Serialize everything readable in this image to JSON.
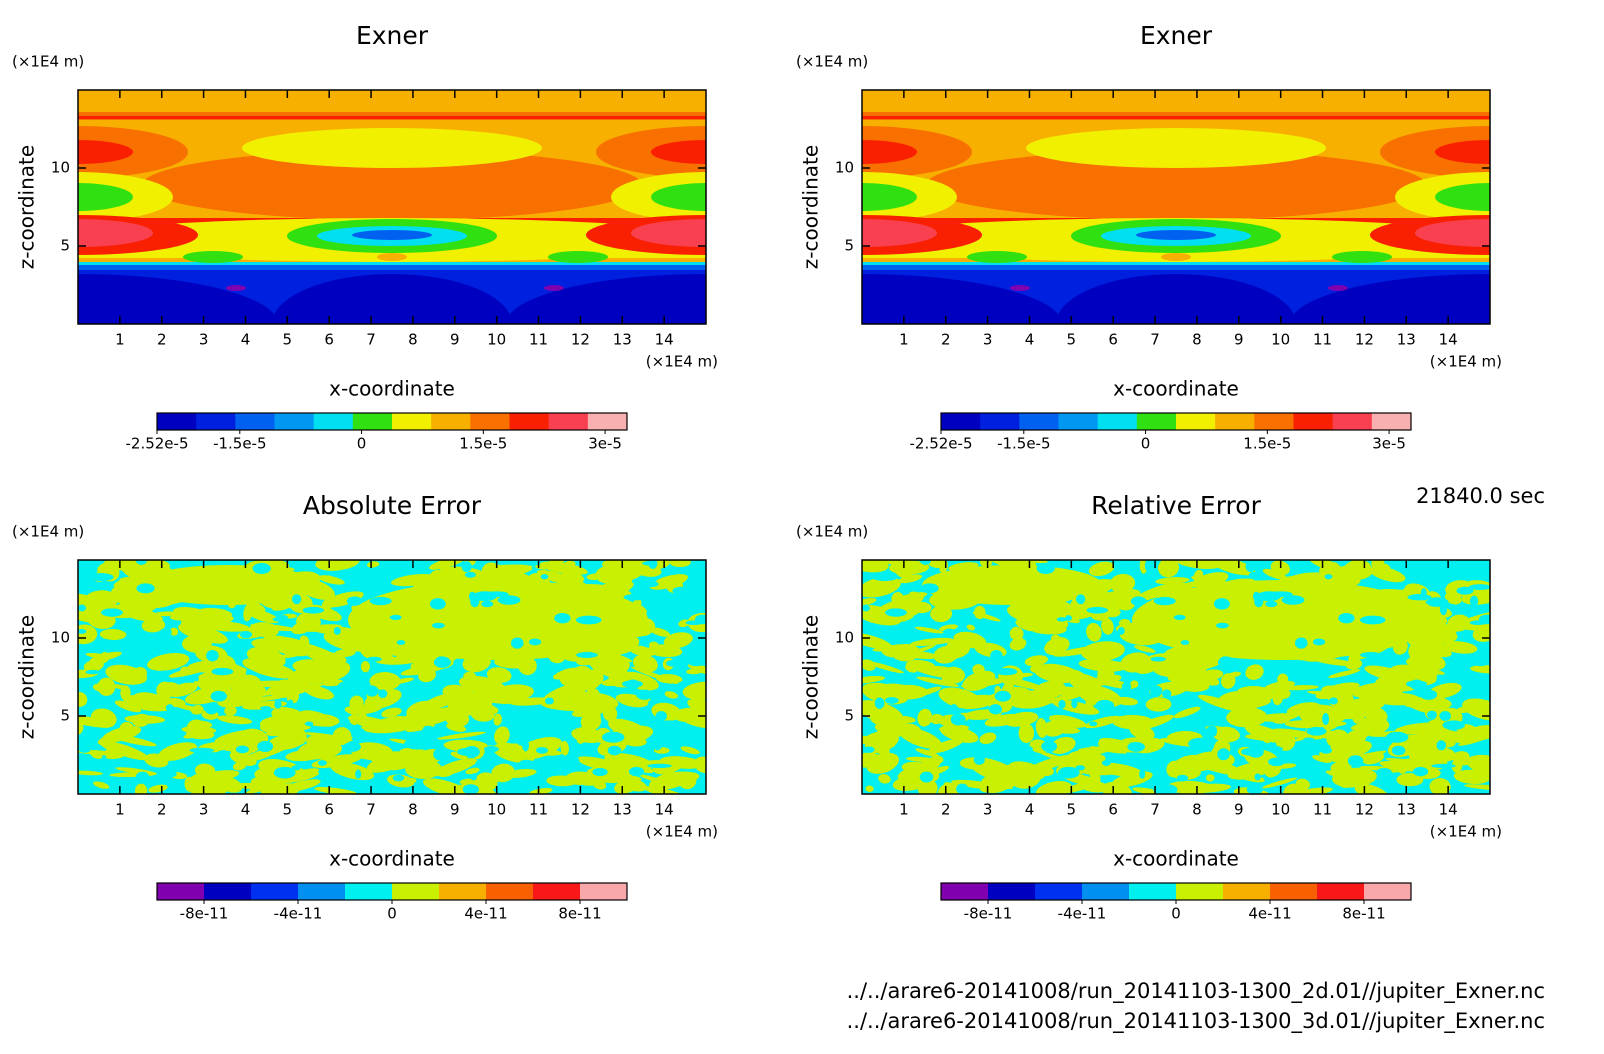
{
  "chart_data": [
    {
      "type": "contour",
      "title": "Exner",
      "xlabel": "x-coordinate",
      "ylabel": "z-coordinate",
      "xunit": "(×1E4 m)",
      "yunit": "(×1E4 m)",
      "xlim": [
        0,
        15
      ],
      "ylim": [
        0,
        15
      ],
      "xticks": [
        1,
        2,
        3,
        4,
        5,
        6,
        7,
        8,
        9,
        10,
        11,
        12,
        13,
        14
      ],
      "yticks": [
        5,
        10
      ],
      "colorbar": {
        "lim": [
          -2.52e-05,
          3.27e-05
        ],
        "colors": [
          "#0000c0",
          "#0020e0",
          "#0060f0",
          "#0098f0",
          "#00e0f0",
          "#30e010",
          "#f0f000",
          "#f8b000",
          "#f87000",
          "#f82000",
          "#f84050",
          "#f8b0b0"
        ],
        "ticks": [
          {
            "value": -2.52e-05,
            "label": "-2.52e-5"
          },
          {
            "value": -1.5e-05,
            "label": "-1.5e-5"
          },
          0,
          {
            "value": 1.5e-05,
            "label": "1.5e-5"
          },
          {
            "value": 3e-05,
            "label": "3e-5"
          }
        ]
      }
    },
    {
      "type": "contour",
      "title": "Exner",
      "xlabel": "x-coordinate",
      "ylabel": "z-coordinate",
      "xunit": "(×1E4 m)",
      "yunit": "(×1E4 m)",
      "xlim": [
        0,
        15
      ],
      "ylim": [
        0,
        15
      ],
      "xticks": [
        1,
        2,
        3,
        4,
        5,
        6,
        7,
        8,
        9,
        10,
        11,
        12,
        13,
        14
      ],
      "yticks": [
        5,
        10
      ],
      "colorbar": {
        "lim": [
          -2.52e-05,
          3.27e-05
        ],
        "colors": [
          "#0000c0",
          "#0020e0",
          "#0060f0",
          "#0098f0",
          "#00e0f0",
          "#30e010",
          "#f0f000",
          "#f8b000",
          "#f87000",
          "#f82000",
          "#f84050",
          "#f8b0b0"
        ],
        "ticks": [
          {
            "value": -2.52e-05,
            "label": "-2.52e-5"
          },
          {
            "value": -1.5e-05,
            "label": "-1.5e-5"
          },
          0,
          {
            "value": 1.5e-05,
            "label": "1.5e-5"
          },
          {
            "value": 3e-05,
            "label": "3e-5"
          }
        ]
      }
    },
    {
      "type": "contour",
      "title": "Absolute Error",
      "xlabel": "x-coordinate",
      "ylabel": "z-coordinate",
      "xunit": "(×1E4 m)",
      "yunit": "(×1E4 m)",
      "xlim": [
        0,
        15
      ],
      "ylim": [
        0,
        15
      ],
      "xticks": [
        1,
        2,
        3,
        4,
        5,
        6,
        7,
        8,
        9,
        10,
        11,
        12,
        13,
        14
      ],
      "yticks": [
        5,
        10
      ],
      "colorbar": {
        "lim": [
          -1e-10,
          1e-10
        ],
        "colors": [
          "#8000b0",
          "#0000c0",
          "#0030f0",
          "#0090f0",
          "#00f0f0",
          "#c8f000",
          "#f8b000",
          "#f86000",
          "#f81818",
          "#f8a8a8"
        ],
        "ticks": [
          {
            "value": -8e-11,
            "label": "-8e-11"
          },
          {
            "value": -4e-11,
            "label": "-4e-11"
          },
          0,
          {
            "value": 4e-11,
            "label": "4e-11"
          },
          {
            "value": 8e-11,
            "label": "8e-11"
          }
        ]
      }
    },
    {
      "type": "contour",
      "title": "Relative Error",
      "xlabel": "x-coordinate",
      "ylabel": "z-coordinate",
      "xunit": "(×1E4 m)",
      "yunit": "(×1E4 m)",
      "xlim": [
        0,
        15
      ],
      "ylim": [
        0,
        15
      ],
      "xticks": [
        1,
        2,
        3,
        4,
        5,
        6,
        7,
        8,
        9,
        10,
        11,
        12,
        13,
        14
      ],
      "yticks": [
        5,
        10
      ],
      "colorbar": {
        "lim": [
          -1e-10,
          1e-10
        ],
        "colors": [
          "#8000b0",
          "#0000c0",
          "#0030f0",
          "#0090f0",
          "#00f0f0",
          "#c8f000",
          "#f8b000",
          "#f86000",
          "#f81818",
          "#f8a8a8"
        ],
        "ticks": [
          {
            "value": -8e-11,
            "label": "-8e-11"
          },
          {
            "value": -4e-11,
            "label": "-4e-11"
          },
          0,
          {
            "value": 4e-11,
            "label": "4e-11"
          },
          {
            "value": 8e-11,
            "label": "8e-11"
          }
        ]
      }
    }
  ],
  "time": "21840.0 sec",
  "files": [
    "../../arare6-20141008/run_20141103-1300_2d.01//jupiter_Exner.nc",
    "../../arare6-20141008/run_20141103-1300_3d.01//jupiter_Exner.nc"
  ]
}
